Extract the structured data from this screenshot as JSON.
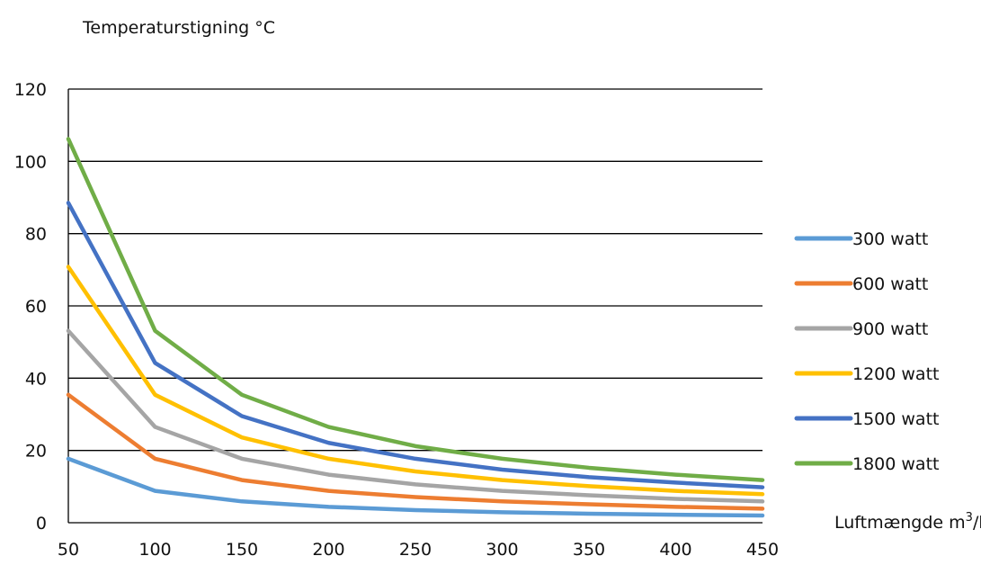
{
  "chart_data": {
    "type": "line",
    "title": "Temperaturstigning °C",
    "xlabel_prefix": "Luftmængde m",
    "xlabel_sup": "3",
    "xlabel_suffix": "/h",
    "x": [
      50,
      100,
      150,
      200,
      250,
      300,
      350,
      400,
      450
    ],
    "ylim": [
      0,
      120
    ],
    "xlim": [
      50,
      450
    ],
    "yticks": [
      "0",
      "20",
      "40",
      "60",
      "80",
      "100",
      "120"
    ],
    "xticks": [
      "50",
      "100",
      "150",
      "200",
      "250",
      "300",
      "350",
      "400",
      "450"
    ],
    "grid": "horizontal",
    "legend_position": "right",
    "series": [
      {
        "name": "300 watt",
        "color": "#5B9BD5",
        "values": [
          17.7,
          8.8,
          5.9,
          4.4,
          3.5,
          2.9,
          2.5,
          2.2,
          2.0
        ]
      },
      {
        "name": "600 watt",
        "color": "#ED7D31",
        "values": [
          35.4,
          17.7,
          11.8,
          8.8,
          7.1,
          5.9,
          5.1,
          4.4,
          3.9
        ]
      },
      {
        "name": "900 watt",
        "color": "#A5A5A5",
        "values": [
          53.1,
          26.5,
          17.7,
          13.3,
          10.6,
          8.8,
          7.6,
          6.6,
          5.9
        ]
      },
      {
        "name": "1200 watt",
        "color": "#FFC000",
        "values": [
          70.8,
          35.4,
          23.6,
          17.7,
          14.2,
          11.8,
          10.1,
          8.8,
          7.9
        ]
      },
      {
        "name": "1500 watt",
        "color": "#4472C4",
        "values": [
          88.5,
          44.2,
          29.5,
          22.1,
          17.7,
          14.7,
          12.6,
          11.1,
          9.8
        ]
      },
      {
        "name": "1800 watt",
        "color": "#70AD47",
        "values": [
          106.2,
          53.1,
          35.4,
          26.5,
          21.2,
          17.7,
          15.2,
          13.3,
          11.8
        ]
      }
    ]
  }
}
